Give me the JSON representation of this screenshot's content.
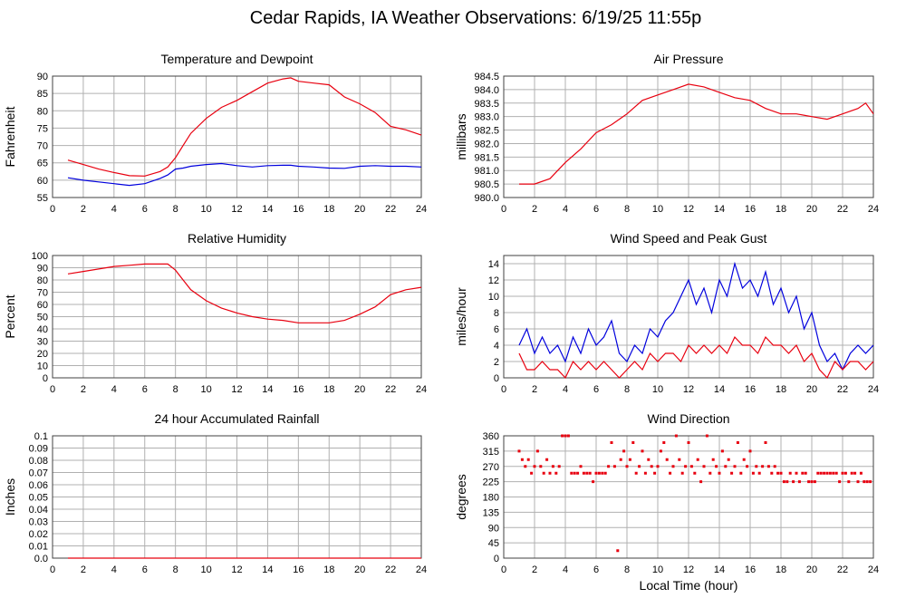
{
  "title": "Cedar Rapids, IA Weather Observations: 6/19/25 11:55p",
  "xlabel": "Local Time (hour)",
  "colors": {
    "red": "#e8000f",
    "blue": "#0000dd",
    "grid": "#b0b0b0",
    "frame": "#404040"
  },
  "chart_data": [
    {
      "type": "line",
      "title": "Temperature and Dewpoint",
      "ylabel": "Fahrenheit",
      "xlim": [
        0,
        24
      ],
      "ylim": [
        55,
        90
      ],
      "xticks": [
        "2",
        "4",
        "6",
        "8",
        "10",
        "12",
        "14",
        "16",
        "18",
        "20",
        "22",
        "24"
      ],
      "yticks": [
        "55",
        "60",
        "65",
        "70",
        "75",
        "80",
        "85",
        "90"
      ],
      "x": [
        1,
        2,
        3,
        4,
        5,
        6,
        7,
        7.5,
        8,
        8.5,
        9,
        10,
        11,
        12,
        13,
        14,
        15,
        15.5,
        16,
        17,
        18,
        19,
        20,
        21,
        22,
        23,
        24
      ],
      "series": [
        {
          "color": "#e8000f",
          "values": [
            65.8,
            64.5,
            63.2,
            62.2,
            61.3,
            61.2,
            62.5,
            63.8,
            66.5,
            70,
            73.5,
            77.8,
            81,
            83,
            85.5,
            88,
            89.2,
            89.5,
            88.5,
            88,
            87.5,
            84,
            82,
            79.5,
            75.5,
            74.5,
            73
          ]
        },
        {
          "color": "#0000dd",
          "values": [
            60.7,
            60,
            59.5,
            59,
            58.5,
            59,
            60.5,
            61.5,
            63.2,
            63.5,
            64,
            64.5,
            64.8,
            64.2,
            63.8,
            64.2,
            64.3,
            64.3,
            64,
            63.8,
            63.5,
            63.4,
            64,
            64.2,
            64,
            64,
            63.8
          ]
        }
      ]
    },
    {
      "type": "line",
      "title": "Air Pressure",
      "ylabel": "millibars",
      "xlim": [
        0,
        24
      ],
      "ylim": [
        980.0,
        984.5
      ],
      "xticks": [
        "2",
        "4",
        "6",
        "8",
        "10",
        "12",
        "14",
        "16",
        "18",
        "20",
        "22",
        "24"
      ],
      "yticks": [
        "980.0",
        "980.5",
        "981.0",
        "981.5",
        "982.0",
        "982.5",
        "983.0",
        "983.5",
        "984.0",
        "984.5"
      ],
      "x": [
        1,
        2,
        3,
        4,
        5,
        6,
        7,
        8,
        9,
        10,
        11,
        12,
        13,
        14,
        15,
        16,
        17,
        18,
        19,
        20,
        21,
        22,
        23,
        23.5,
        24
      ],
      "series": [
        {
          "color": "#e8000f",
          "values": [
            980.5,
            980.5,
            980.7,
            981.3,
            981.8,
            982.4,
            982.7,
            983.1,
            983.6,
            983.8,
            984.0,
            984.2,
            984.1,
            983.9,
            983.7,
            983.6,
            983.3,
            983.1,
            983.1,
            983.0,
            982.9,
            983.1,
            983.3,
            983.5,
            983.1
          ]
        }
      ]
    },
    {
      "type": "line",
      "title": "Relative Humidity",
      "ylabel": "Percent",
      "xlim": [
        0,
        24
      ],
      "ylim": [
        0,
        100
      ],
      "xticks": [
        "2",
        "4",
        "6",
        "8",
        "10",
        "12",
        "14",
        "16",
        "18",
        "20",
        "22",
        "24"
      ],
      "yticks": [
        "0",
        "10",
        "20",
        "30",
        "40",
        "50",
        "60",
        "70",
        "80",
        "90",
        "100"
      ],
      "x": [
        1,
        2,
        3,
        4,
        5,
        6,
        7,
        7.5,
        8,
        8.5,
        9,
        10,
        11,
        12,
        13,
        14,
        15,
        16,
        17,
        18,
        19,
        20,
        21,
        22,
        23,
        24
      ],
      "series": [
        {
          "color": "#e8000f",
          "values": [
            85,
            87,
            89,
            91,
            92,
            93,
            93,
            93,
            88,
            80,
            72,
            63,
            57,
            53,
            50,
            48,
            47,
            45,
            45,
            45,
            47,
            52,
            58,
            68,
            72,
            74
          ]
        }
      ]
    },
    {
      "type": "line",
      "title": "Wind Speed and Peak Gust",
      "ylabel": "miles/hour",
      "xlim": [
        0,
        24
      ],
      "ylim": [
        0,
        15
      ],
      "xticks": [
        "2",
        "4",
        "6",
        "8",
        "10",
        "12",
        "14",
        "16",
        "18",
        "20",
        "22",
        "24"
      ],
      "yticks": [
        "0",
        "2",
        "4",
        "6",
        "8",
        "10",
        "12",
        "14"
      ],
      "x": [
        1,
        1.5,
        2,
        2.5,
        3,
        3.5,
        4,
        4.5,
        5,
        5.5,
        6,
        6.5,
        7,
        7.5,
        8,
        8.5,
        9,
        9.5,
        10,
        10.5,
        11,
        11.5,
        12,
        12.5,
        13,
        13.5,
        14,
        14.5,
        15,
        15.5,
        16,
        16.5,
        17,
        17.5,
        18,
        18.5,
        19,
        19.5,
        20,
        20.5,
        21,
        21.5,
        22,
        22.5,
        23,
        23.5,
        24
      ],
      "series": [
        {
          "color": "#0000dd",
          "values": [
            4,
            6,
            3,
            5,
            3,
            4,
            2,
            5,
            3,
            6,
            4,
            5,
            7,
            3,
            2,
            4,
            3,
            6,
            5,
            7,
            8,
            10,
            12,
            9,
            11,
            8,
            12,
            10,
            14,
            11,
            12,
            10,
            13,
            9,
            11,
            8,
            10,
            6,
            8,
            4,
            2,
            3,
            1,
            3,
            4,
            3,
            4
          ]
        },
        {
          "color": "#e8000f",
          "values": [
            3,
            1,
            1,
            2,
            1,
            1,
            0,
            2,
            1,
            2,
            1,
            2,
            1,
            0,
            1,
            2,
            1,
            3,
            2,
            3,
            3,
            2,
            4,
            3,
            4,
            3,
            4,
            3,
            5,
            4,
            4,
            3,
            5,
            4,
            4,
            3,
            4,
            2,
            3,
            1,
            0,
            2,
            1,
            2,
            2,
            1,
            2
          ]
        }
      ]
    },
    {
      "type": "line",
      "title": "24 hour Accumulated Rainfall",
      "ylabel": "Inches",
      "xlim": [
        0,
        24
      ],
      "ylim": [
        0,
        0.1
      ],
      "xticks": [
        "2",
        "4",
        "6",
        "8",
        "10",
        "12",
        "14",
        "16",
        "18",
        "20",
        "22",
        "24"
      ],
      "yticks": [
        "0.0",
        "0.01",
        "0.02",
        "0.03",
        "0.04",
        "0.05",
        "0.06",
        "0.07",
        "0.08",
        "0.09",
        "0.1"
      ],
      "x": [
        1,
        24
      ],
      "series": [
        {
          "color": "#e8000f",
          "values": [
            0,
            0
          ]
        }
      ]
    },
    {
      "type": "scatter",
      "title": "Wind Direction",
      "ylabel": "degrees",
      "xlim": [
        0,
        24
      ],
      "ylim": [
        0,
        360
      ],
      "xticks": [
        "2",
        "4",
        "6",
        "8",
        "10",
        "12",
        "14",
        "16",
        "18",
        "20",
        "22",
        "24"
      ],
      "yticks": [
        "0",
        "45",
        "90",
        "135",
        "180",
        "225",
        "270",
        "315",
        "360"
      ],
      "x": [
        1,
        1.2,
        1.4,
        1.6,
        1.8,
        2,
        2.2,
        2.4,
        2.6,
        2.8,
        3,
        3.2,
        3.4,
        3.6,
        3.8,
        4,
        4.2,
        4.4,
        4.6,
        4.8,
        5,
        5.2,
        5.4,
        5.6,
        5.8,
        6,
        6.2,
        6.4,
        6.6,
        6.8,
        7,
        7.2,
        7.4,
        7.6,
        7.8,
        8,
        8.2,
        8.4,
        8.6,
        8.8,
        9,
        9.2,
        9.4,
        9.6,
        9.8,
        10,
        10.2,
        10.4,
        10.6,
        10.8,
        11,
        11.2,
        11.4,
        11.6,
        11.8,
        12,
        12.2,
        12.4,
        12.6,
        12.8,
        13,
        13.2,
        13.4,
        13.6,
        13.8,
        14,
        14.2,
        14.4,
        14.6,
        14.8,
        15,
        15.2,
        15.4,
        15.6,
        15.8,
        16,
        16.2,
        16.4,
        16.6,
        16.8,
        17,
        17.2,
        17.4,
        17.6,
        17.8,
        18,
        18.2,
        18.4,
        18.6,
        18.8,
        19,
        19.2,
        19.4,
        19.6,
        19.8,
        20,
        20.2,
        20.4,
        20.6,
        20.8,
        21,
        21.2,
        21.4,
        21.6,
        21.8,
        22,
        22.2,
        22.4,
        22.6,
        22.8,
        23,
        23.2,
        23.4,
        23.6,
        23.8,
        24
      ],
      "series": [
        {
          "color": "#e8000f",
          "values": [
            315,
            290,
            270,
            290,
            250,
            270,
            315,
            270,
            250,
            290,
            250,
            270,
            250,
            270,
            360,
            360,
            360,
            250,
            250,
            250,
            270,
            250,
            250,
            250,
            225,
            250,
            250,
            250,
            250,
            270,
            340,
            270,
            22,
            290,
            315,
            270,
            290,
            340,
            250,
            270,
            315,
            250,
            290,
            270,
            250,
            270,
            315,
            340,
            290,
            250,
            270,
            360,
            290,
            250,
            270,
            340,
            270,
            250,
            290,
            225,
            270,
            360,
            250,
            290,
            270,
            250,
            315,
            270,
            290,
            250,
            270,
            340,
            250,
            290,
            270,
            315,
            250,
            270,
            250,
            270,
            340,
            270,
            250,
            270,
            250,
            250,
            225,
            225,
            250,
            225,
            250,
            225,
            250,
            250,
            225,
            225,
            225,
            250,
            250,
            250,
            250,
            250,
            250,
            250,
            225,
            250,
            250,
            225,
            250,
            250,
            225,
            250,
            225,
            225,
            225
          ]
        }
      ]
    }
  ]
}
